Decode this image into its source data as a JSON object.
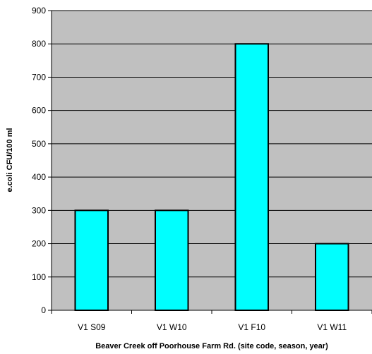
{
  "colors": {
    "plot_background": "#c0c0c0",
    "bar_fill": "#00ffff",
    "bar_stroke": "#000000",
    "gridline": "#000000"
  },
  "chart_data": {
    "type": "bar",
    "title": "",
    "categories": [
      "V1 S09",
      "V1 W10",
      "V1 F10",
      "V1 W11"
    ],
    "values": [
      300,
      300,
      800,
      200
    ],
    "xlabel": "Beaver Creek off Poorhouse Farm Rd. (site code, season, year)",
    "ylabel": "e.coli CFU/100 ml",
    "ylim": [
      0,
      900
    ],
    "yticks": [
      "0",
      "100",
      "200",
      "300",
      "400",
      "500",
      "600",
      "700",
      "800",
      "900"
    ],
    "grid": true,
    "legend": "none"
  }
}
